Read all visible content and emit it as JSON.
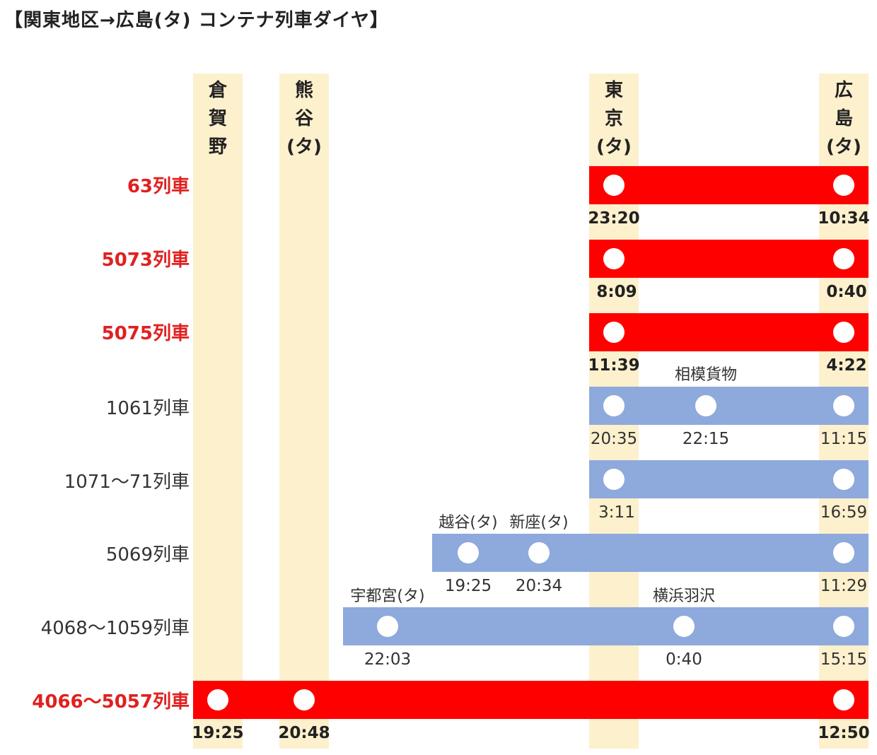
{
  "title": "【関東地区→広島(タ) コンテナ列車ダイヤ】",
  "colors": {
    "red": "#ff0000",
    "blue": "#8ea9db",
    "column": "#fdf0cd",
    "red_text": "#e02020"
  },
  "stations": {
    "kurashino": "倉\n賀\n野",
    "kumagaya": "熊\n谷\n(タ)",
    "tokyo": "東\n京\n(タ)",
    "hiroshima": "広\n島\n(タ)"
  },
  "trains": [
    {
      "label": "63列車",
      "highlight": true,
      "times": {
        "tokyo": "23:20",
        "hiroshima": "10:34"
      }
    },
    {
      "label": "5073列車",
      "highlight": true,
      "times": {
        "tokyo": "8:09",
        "hiroshima": "0:40"
      }
    },
    {
      "label": "5075列車",
      "highlight": true,
      "times": {
        "tokyo": "11:39",
        "hiroshima": "4:22"
      }
    },
    {
      "label": "1061列車",
      "highlight": false,
      "via": "相模貨物",
      "times": {
        "tokyo": "20:35",
        "sagami": "22:15",
        "hiroshima": "11:15"
      }
    },
    {
      "label": "1071〜71列車",
      "highlight": false,
      "times": {
        "tokyo": "3:11",
        "hiroshima": "16:59"
      }
    },
    {
      "label": "5069列車",
      "highlight": false,
      "via1": "越谷(タ)",
      "via2": "新座(タ)",
      "times": {
        "koshigaya": "19:25",
        "niiza": "20:34",
        "hiroshima": "11:29"
      }
    },
    {
      "label": "4068〜1059列車",
      "highlight": false,
      "via1": "宇都宮(タ)",
      "via2": "横浜羽沢",
      "times": {
        "utsunomiya": "22:03",
        "yokohama": "0:40",
        "hiroshima": "15:15"
      }
    },
    {
      "label": "4066〜5057列車",
      "highlight": true,
      "times": {
        "kurashino": "19:25",
        "kumagaya": "20:48",
        "hiroshima": "12:50"
      }
    }
  ]
}
